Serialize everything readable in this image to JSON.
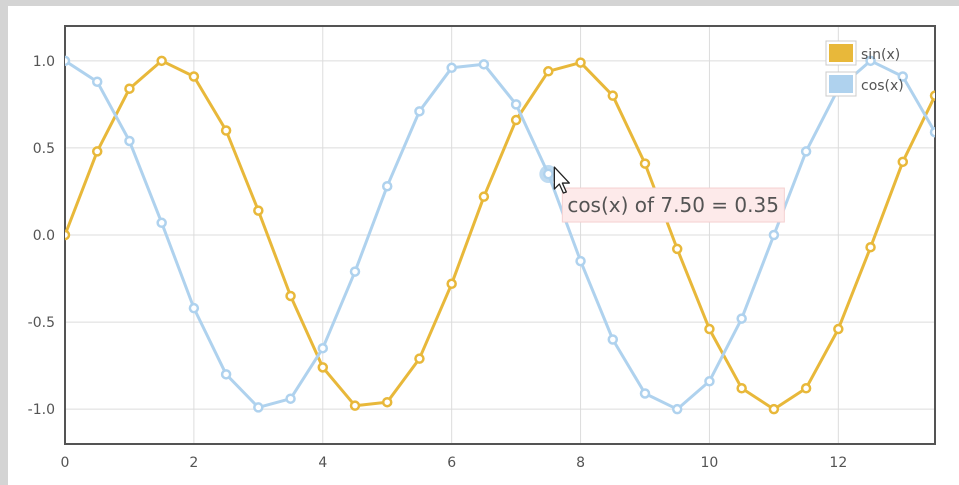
{
  "chart_data": {
    "type": "line",
    "title": "",
    "xlabel": "",
    "ylabel": "",
    "xlim": [
      0,
      13.5
    ],
    "ylim": [
      -1.2,
      1.2
    ],
    "x_ticks": [
      "0",
      "2",
      "4",
      "6",
      "8",
      "10",
      "12"
    ],
    "y_ticks": [
      "1.0",
      "0.5",
      "0.0",
      "-0.5",
      "-1.0"
    ],
    "grid": true,
    "legend_position": "top-right",
    "x": [
      0,
      0.5,
      1,
      1.5,
      2,
      2.5,
      3,
      3.5,
      4,
      4.5,
      5,
      5.5,
      6,
      6.5,
      7,
      7.5,
      8,
      8.5,
      9,
      9.5,
      10,
      10.5,
      11,
      11.5,
      12,
      12.5,
      13,
      13.5
    ],
    "series": [
      {
        "name": "sin(x)",
        "color": "#e8b83a",
        "values": [
          0.0,
          0.48,
          0.84,
          1.0,
          0.91,
          0.6,
          0.14,
          -0.35,
          -0.76,
          -0.98,
          -0.96,
          -0.71,
          -0.28,
          0.22,
          0.66,
          0.94,
          0.99,
          0.8,
          0.41,
          -0.08,
          -0.54,
          -0.88,
          -1.0,
          -0.88,
          -0.54,
          -0.07,
          0.42,
          0.8
        ]
      },
      {
        "name": "cos(x)",
        "color": "#afd2ee",
        "values": [
          1.0,
          0.88,
          0.54,
          0.07,
          -0.42,
          -0.8,
          -0.99,
          -0.94,
          -0.65,
          -0.21,
          0.28,
          0.71,
          0.96,
          0.98,
          0.75,
          0.35,
          -0.15,
          -0.6,
          -0.91,
          -1.0,
          -0.84,
          -0.48,
          0.0,
          0.48,
          0.84,
          1.0,
          0.91,
          0.59
        ]
      }
    ],
    "highlight": {
      "series": "cos(x)",
      "x": 7.5,
      "y": 0.35
    },
    "tooltip": "cos(x) of 7.50 = 0.35"
  }
}
